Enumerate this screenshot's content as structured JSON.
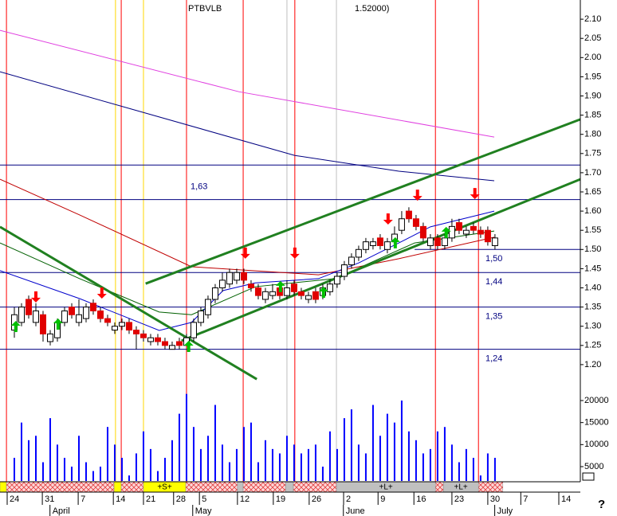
{
  "chart_data": [
    {
      "type": "candlestick",
      "title": "PTBVLB",
      "subtitle": "1.52000)",
      "xlim": [
        -2,
        78.9
      ],
      "ylim": [
        1.15,
        2.15
      ],
      "open": [
        1.29,
        1.31,
        1.37,
        1.31,
        1.33,
        1.26,
        1.27,
        1.31,
        1.35,
        1.31,
        1.32,
        1.36,
        1.34,
        1.32,
        1.29,
        1.3,
        1.31,
        1.29,
        1.28,
        1.26,
        1.27,
        1.26,
        1.24,
        1.26,
        1.25,
        1.27,
        1.31,
        1.33,
        1.37,
        1.4,
        1.41,
        1.42,
        1.44,
        1.41,
        1.4,
        1.37,
        1.38,
        1.4,
        1.38,
        1.41,
        1.39,
        1.37,
        1.39,
        1.38,
        1.39,
        1.41,
        1.43,
        1.46,
        1.48,
        1.5,
        1.51,
        1.53,
        1.5,
        1.52,
        1.55,
        1.6,
        1.58,
        1.56,
        1.51,
        1.53,
        1.51,
        1.53,
        1.57,
        1.54,
        1.56,
        1.55,
        1.55,
        1.51
      ],
      "high": [
        1.35,
        1.36,
        1.38,
        1.36,
        1.34,
        1.29,
        1.32,
        1.35,
        1.36,
        1.37,
        1.36,
        1.37,
        1.35,
        1.33,
        1.31,
        1.32,
        1.32,
        1.3,
        1.29,
        1.28,
        1.28,
        1.27,
        1.26,
        1.27,
        1.28,
        1.32,
        1.35,
        1.38,
        1.41,
        1.44,
        1.45,
        1.45,
        1.45,
        1.42,
        1.41,
        1.4,
        1.41,
        1.41,
        1.42,
        1.42,
        1.4,
        1.39,
        1.4,
        1.41,
        1.42,
        1.44,
        1.47,
        1.49,
        1.51,
        1.53,
        1.53,
        1.54,
        1.53,
        1.56,
        1.6,
        1.61,
        1.59,
        1.57,
        1.54,
        1.54,
        1.54,
        1.58,
        1.58,
        1.56,
        1.57,
        1.56,
        1.56,
        1.54
      ],
      "low": [
        1.27,
        1.3,
        1.32,
        1.3,
        1.26,
        1.25,
        1.26,
        1.3,
        1.32,
        1.3,
        1.31,
        1.33,
        1.31,
        1.3,
        1.28,
        1.29,
        1.28,
        1.24,
        1.26,
        1.25,
        1.25,
        1.24,
        1.24,
        1.24,
        1.25,
        1.26,
        1.3,
        1.32,
        1.36,
        1.39,
        1.4,
        1.41,
        1.41,
        1.39,
        1.37,
        1.36,
        1.37,
        1.37,
        1.37,
        1.38,
        1.37,
        1.36,
        1.36,
        1.37,
        1.38,
        1.4,
        1.42,
        1.45,
        1.47,
        1.49,
        1.5,
        1.5,
        1.49,
        1.51,
        1.54,
        1.57,
        1.55,
        1.52,
        1.5,
        1.5,
        1.5,
        1.52,
        1.54,
        1.53,
        1.54,
        1.53,
        1.51,
        1.5
      ],
      "close": [
        1.33,
        1.35,
        1.33,
        1.34,
        1.28,
        1.28,
        1.31,
        1.34,
        1.33,
        1.33,
        1.35,
        1.34,
        1.32,
        1.31,
        1.3,
        1.31,
        1.29,
        1.28,
        1.27,
        1.27,
        1.26,
        1.25,
        1.25,
        1.25,
        1.27,
        1.31,
        1.34,
        1.37,
        1.4,
        1.42,
        1.44,
        1.44,
        1.42,
        1.4,
        1.38,
        1.39,
        1.39,
        1.38,
        1.4,
        1.39,
        1.38,
        1.38,
        1.37,
        1.4,
        1.41,
        1.43,
        1.46,
        1.48,
        1.5,
        1.52,
        1.52,
        1.51,
        1.52,
        1.54,
        1.58,
        1.58,
        1.56,
        1.53,
        1.53,
        1.51,
        1.53,
        1.56,
        1.55,
        1.55,
        1.55,
        1.54,
        1.52,
        1.53
      ],
      "up_color": "#ffffff",
      "down_color": "#e00000",
      "yticks": [
        {
          "value": 1.2,
          "label": "1.20"
        },
        {
          "value": 1.25,
          "label": "1.25"
        },
        {
          "value": 1.3,
          "label": "1.30"
        },
        {
          "value": 1.35,
          "label": "1.35"
        },
        {
          "value": 1.4,
          "label": "1.40"
        },
        {
          "value": 1.45,
          "label": "1.45"
        },
        {
          "value": 1.5,
          "label": "1.50"
        },
        {
          "value": 1.55,
          "label": "1.55"
        },
        {
          "value": 1.6,
          "label": "1.60"
        },
        {
          "value": 1.65,
          "label": "1.65"
        },
        {
          "value": 1.7,
          "label": "1.70"
        },
        {
          "value": 1.75,
          "label": "1.75"
        },
        {
          "value": 1.8,
          "label": "1.80"
        },
        {
          "value": 1.85,
          "label": "1.85"
        },
        {
          "value": 1.9,
          "label": "1.90"
        },
        {
          "value": 1.95,
          "label": "1.95"
        },
        {
          "value": 2.0,
          "label": "2.00"
        },
        {
          "value": 2.05,
          "label": "2.05"
        },
        {
          "value": 2.1,
          "label": "2.10"
        }
      ],
      "xticks": [
        {
          "value": 0,
          "label": "24"
        },
        {
          "value": 4.9,
          "label": "31"
        },
        {
          "value": 9.9,
          "label": "7"
        },
        {
          "value": 14.8,
          "label": "14"
        },
        {
          "value": 19,
          "label": "21"
        },
        {
          "value": 23.2,
          "label": "28"
        },
        {
          "value": 26.8,
          "label": "5"
        },
        {
          "value": 32.1,
          "label": "12"
        },
        {
          "value": 37.1,
          "label": "19"
        },
        {
          "value": 42.1,
          "label": "26"
        },
        {
          "value": 46.9,
          "label": "2"
        },
        {
          "value": 51.7,
          "label": "9"
        },
        {
          "value": 56.7,
          "label": "16"
        },
        {
          "value": 62,
          "label": "23"
        },
        {
          "value": 67,
          "label": "30"
        },
        {
          "value": 71.6,
          "label": "7"
        },
        {
          "value": 76.9,
          "label": "14"
        }
      ],
      "months": [
        {
          "value": 5.3,
          "label": "April"
        },
        {
          "value": 25.2,
          "label": "May"
        },
        {
          "value": 46.2,
          "label": "June"
        },
        {
          "value": 67.3,
          "label": "July"
        }
      ],
      "lines": [
        {
          "color": "#e040e0",
          "x": [
            -2,
            31.3,
            66.9
          ],
          "values": [
            2.071,
            1.911,
            1.793
          ]
        },
        {
          "color": "#000080",
          "x": [
            -2,
            39.1,
            53.6,
            66.9
          ],
          "values": [
            1.963,
            1.745,
            1.704,
            1.679
          ]
        },
        {
          "color": "#c00000",
          "x": [
            -2,
            9.1,
            24.7,
            42.4,
            53.6,
            66.9
          ],
          "values": [
            1.683,
            1.59,
            1.455,
            1.434,
            1.476,
            1.532
          ]
        },
        {
          "color": "#006000",
          "x": [
            -2,
            9.1,
            20.2,
            24.7,
            33.6,
            44.7,
            55.8,
            66.9
          ],
          "values": [
            1.517,
            1.424,
            1.337,
            1.33,
            1.403,
            1.424,
            1.517,
            1.548
          ]
        },
        {
          "color": "#0000cc",
          "x": [
            -2,
            9.1,
            20.2,
            24.7,
            29.1,
            33.6,
            42.4,
            48,
            53.6,
            58,
            66.9
          ],
          "values": [
            1.445,
            1.372,
            1.289,
            1.31,
            1.393,
            1.413,
            1.424,
            1.465,
            1.517,
            1.559,
            1.6
          ]
        }
      ],
      "trendlines": [
        {
          "color": "#208020",
          "x": [
            18.3,
            78.9
          ],
          "values": [
            1.411,
            1.839
          ]
        },
        {
          "color": "#208020",
          "x": [
            23.3,
            78.9
          ],
          "values": [
            1.262,
            1.683
          ]
        },
        {
          "color": "#208020",
          "x": [
            -2,
            33.8
          ],
          "values": [
            1.559,
            1.162
          ]
        }
      ],
      "levels": [
        {
          "value": 1.72
        },
        {
          "value": 1.63,
          "label": "1,63"
        },
        {
          "value": 1.5,
          "label": "1,50",
          "from": 55.8
        },
        {
          "value": 1.44,
          "label": "1,44"
        },
        {
          "value": 1.35,
          "label": "1,35"
        },
        {
          "value": 1.24,
          "label": "1,24"
        }
      ],
      "level_color": "#000080",
      "vlines": [
        {
          "x": -1.1,
          "color": "#ff0000"
        },
        {
          "x": 14.1,
          "color": "#ffd700"
        },
        {
          "x": 14.9,
          "color": "#ff0000"
        },
        {
          "x": 18,
          "color": "#ffd700"
        },
        {
          "x": 24,
          "color": "#ff0000"
        },
        {
          "x": 31.9,
          "color": "#ff0000"
        },
        {
          "x": 38,
          "color": "#c0c0c0"
        },
        {
          "x": 39.1,
          "color": "#ff0000"
        },
        {
          "x": 44.9,
          "color": "#c0c0c0"
        },
        {
          "x": 58.7,
          "color": "#ff0000"
        },
        {
          "x": 64.7,
          "color": "#ff0000"
        }
      ],
      "buy_arrows": {
        "color": "#00c000",
        "x": [
          0.2,
          6.1,
          24.3,
          37.1,
          43.1,
          53.1,
          60.2
        ],
        "values": [
          1.314,
          1.32,
          1.262,
          1.418,
          1.403,
          1.532,
          1.559
        ]
      },
      "sell_arrows": {
        "color": "#ff0000",
        "x": [
          3,
          12.2,
          32.2,
          39.1,
          52.1,
          56.2,
          64.2
        ],
        "values": [
          1.362,
          1.372,
          1.476,
          1.476,
          1.565,
          1.627,
          1.631
        ]
      },
      "signals": [
        {
          "from": -2,
          "to": -1.1,
          "color": "#ffff00"
        },
        {
          "from": -1.1,
          "to": 13.9,
          "color": "hatch"
        },
        {
          "from": 13.9,
          "to": 14.9,
          "color": "#ffff00"
        },
        {
          "from": 14.9,
          "to": 18,
          "color": "hatch"
        },
        {
          "from": 18,
          "to": 23.9,
          "color": "#ffff00",
          "label": "+S+"
        },
        {
          "from": 23.9,
          "to": 31.1,
          "color": "hatch"
        },
        {
          "from": 31.1,
          "to": 31.9,
          "color": "#c0c0c0"
        },
        {
          "from": 31.9,
          "to": 37.8,
          "color": "hatch"
        },
        {
          "from": 37.8,
          "to": 38.9,
          "color": "#c0c0c0"
        },
        {
          "from": 38.9,
          "to": 44.9,
          "color": "hatch"
        },
        {
          "from": 44.9,
          "to": 58.7,
          "color": "#c0c0c0",
          "label": "+L+"
        },
        {
          "from": 58.7,
          "to": 59.8,
          "color": "hatch"
        },
        {
          "from": 59.8,
          "to": 64.7,
          "color": "#c0c0c0",
          "label": "+L+"
        },
        {
          "from": 64.7,
          "to": 68.1,
          "color": "hatch"
        }
      ],
      "help": "?"
    },
    {
      "type": "bar",
      "color": "#0000ff",
      "ylim": [
        1750,
        23250
      ],
      "yticks": [
        5000,
        10000,
        15000,
        20000
      ],
      "values": [
        7000,
        15000,
        11000,
        12000,
        6000,
        16000,
        10000,
        7000,
        5000,
        12000,
        6000,
        4000,
        5000,
        14000,
        10000,
        7000,
        3000,
        8000,
        13000,
        9000,
        4000,
        7000,
        11000,
        17000,
        21500,
        14000,
        9000,
        12000,
        19000,
        10000,
        6000,
        9000,
        14000,
        15000,
        6000,
        11000,
        9000,
        8000,
        12000,
        10000,
        8000,
        9000,
        10000,
        5000,
        13000,
        9000,
        16000,
        18000,
        10000,
        8000,
        19000,
        12000,
        17000,
        15000,
        20000,
        13000,
        11000,
        8000,
        9000,
        13000,
        14000,
        10000,
        6000,
        9000,
        7000,
        3000,
        8000,
        7000
      ]
    }
  ]
}
